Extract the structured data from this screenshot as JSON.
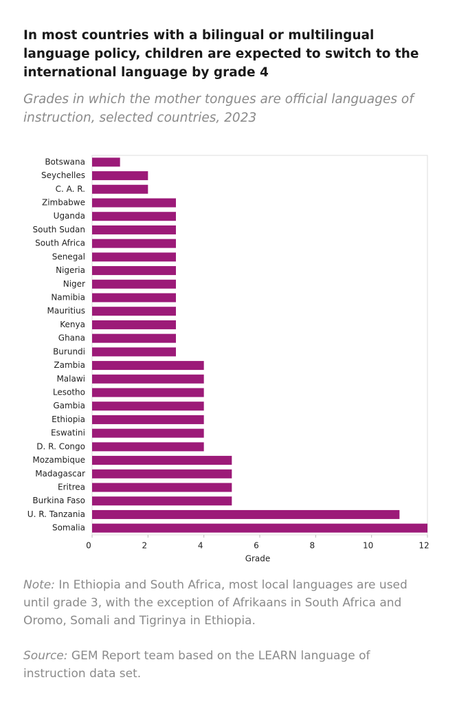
{
  "chart_data": {
    "type": "bar",
    "orientation": "horizontal",
    "title": "In most countries with a bilingual or multilingual language policy, children are expected to switch to the international language by grade 4",
    "subtitle": "Grades in which the mother tongues are official languages of instruction, selected countries, 2023",
    "categories": [
      "Botswana",
      "Seychelles",
      "C. A. R.",
      "Zimbabwe",
      "Uganda",
      "South Sudan",
      "South Africa",
      "Senegal",
      "Nigeria",
      "Niger",
      "Namibia",
      "Mauritius",
      "Kenya",
      "Ghana",
      "Burundi",
      "Zambia",
      "Malawi",
      "Lesotho",
      "Gambia",
      "Ethiopia",
      "Eswatini",
      "D. R. Congo",
      "Mozambique",
      "Madagascar",
      "Eritrea",
      "Burkina Faso",
      "U. R. Tanzania",
      "Somalia"
    ],
    "values": [
      1,
      2,
      2,
      3,
      3,
      3,
      3,
      3,
      3,
      3,
      3,
      3,
      3,
      3,
      3,
      4,
      4,
      4,
      4,
      4,
      4,
      4,
      5,
      5,
      5,
      5,
      11,
      12
    ],
    "color": "#9c1a78",
    "xlabel": "Grade",
    "xlim": [
      0,
      12
    ],
    "xticks": [
      0,
      2,
      4,
      6,
      8,
      10,
      12
    ],
    "note_label": "Note:",
    "note": "In Ethiopia and South Africa, most local languages are used until grade 3, with the exception of Afrikaans in South Africa and Oromo, Somali and Tigrinya in Ethiopia.",
    "source_label": "Source:",
    "source": "GEM Report team based on the LEARN language of instruction data set."
  }
}
